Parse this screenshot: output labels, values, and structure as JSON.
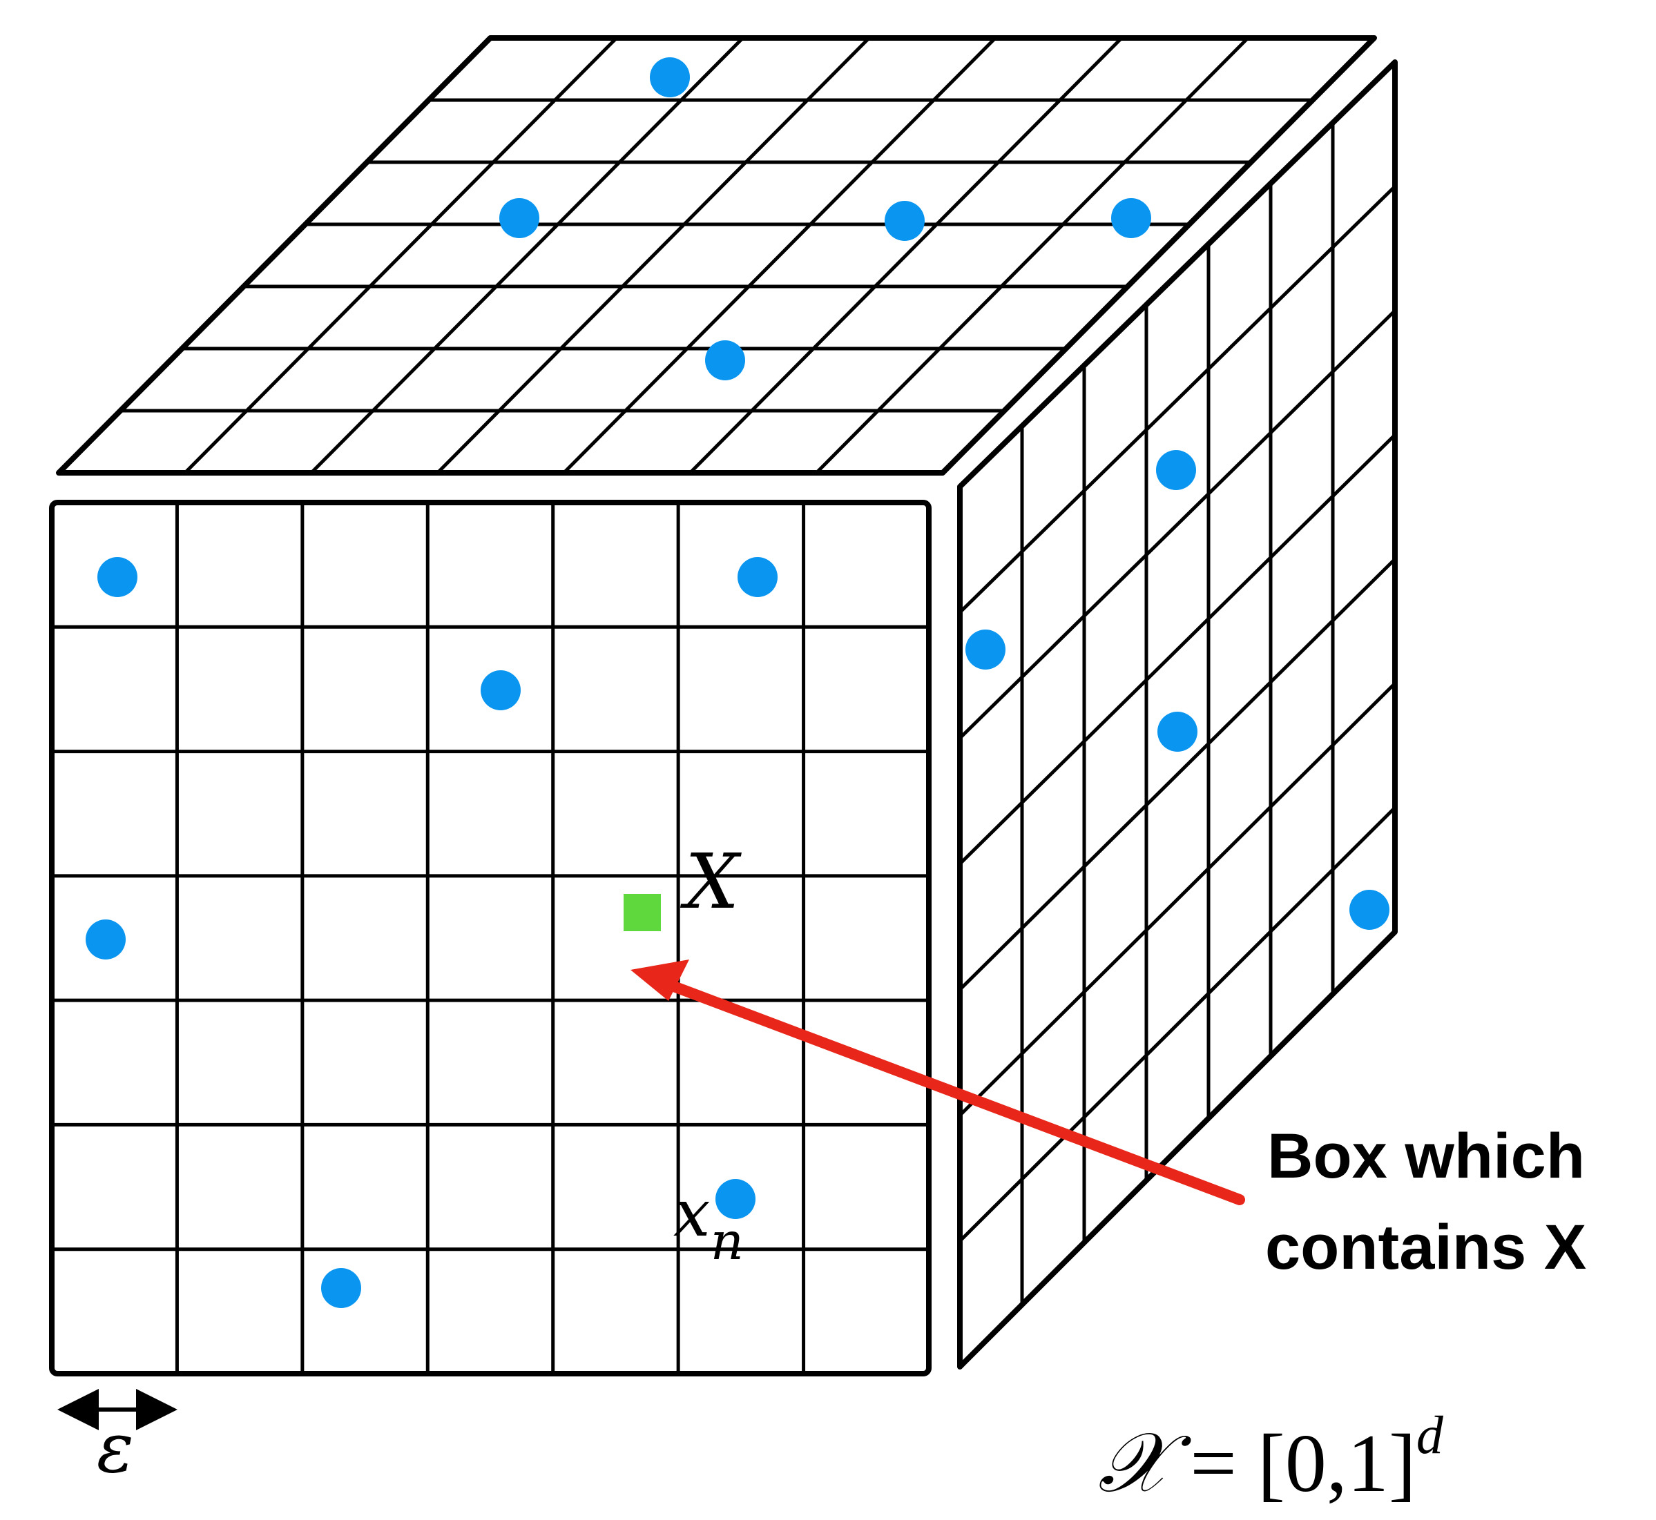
{
  "diagram": {
    "grid_divisions": 7,
    "colors": {
      "outline": "#000000",
      "point": "#0a96f0",
      "target_point": "#5fd83e",
      "arrow": "#e8261a",
      "background": "#ffffff"
    },
    "labels": {
      "target": "X",
      "neighbor_base": "x",
      "neighbor_sub": "n",
      "callout_line1": "Box which",
      "callout_line2": "contains X",
      "epsilon": "ε",
      "space_script": "𝒳",
      "space_eq": " = [0,1]",
      "space_sup": "d"
    },
    "icons": {
      "scale_arrow": "double-headed-arrow",
      "callout_arrow": "red-arrow"
    }
  }
}
